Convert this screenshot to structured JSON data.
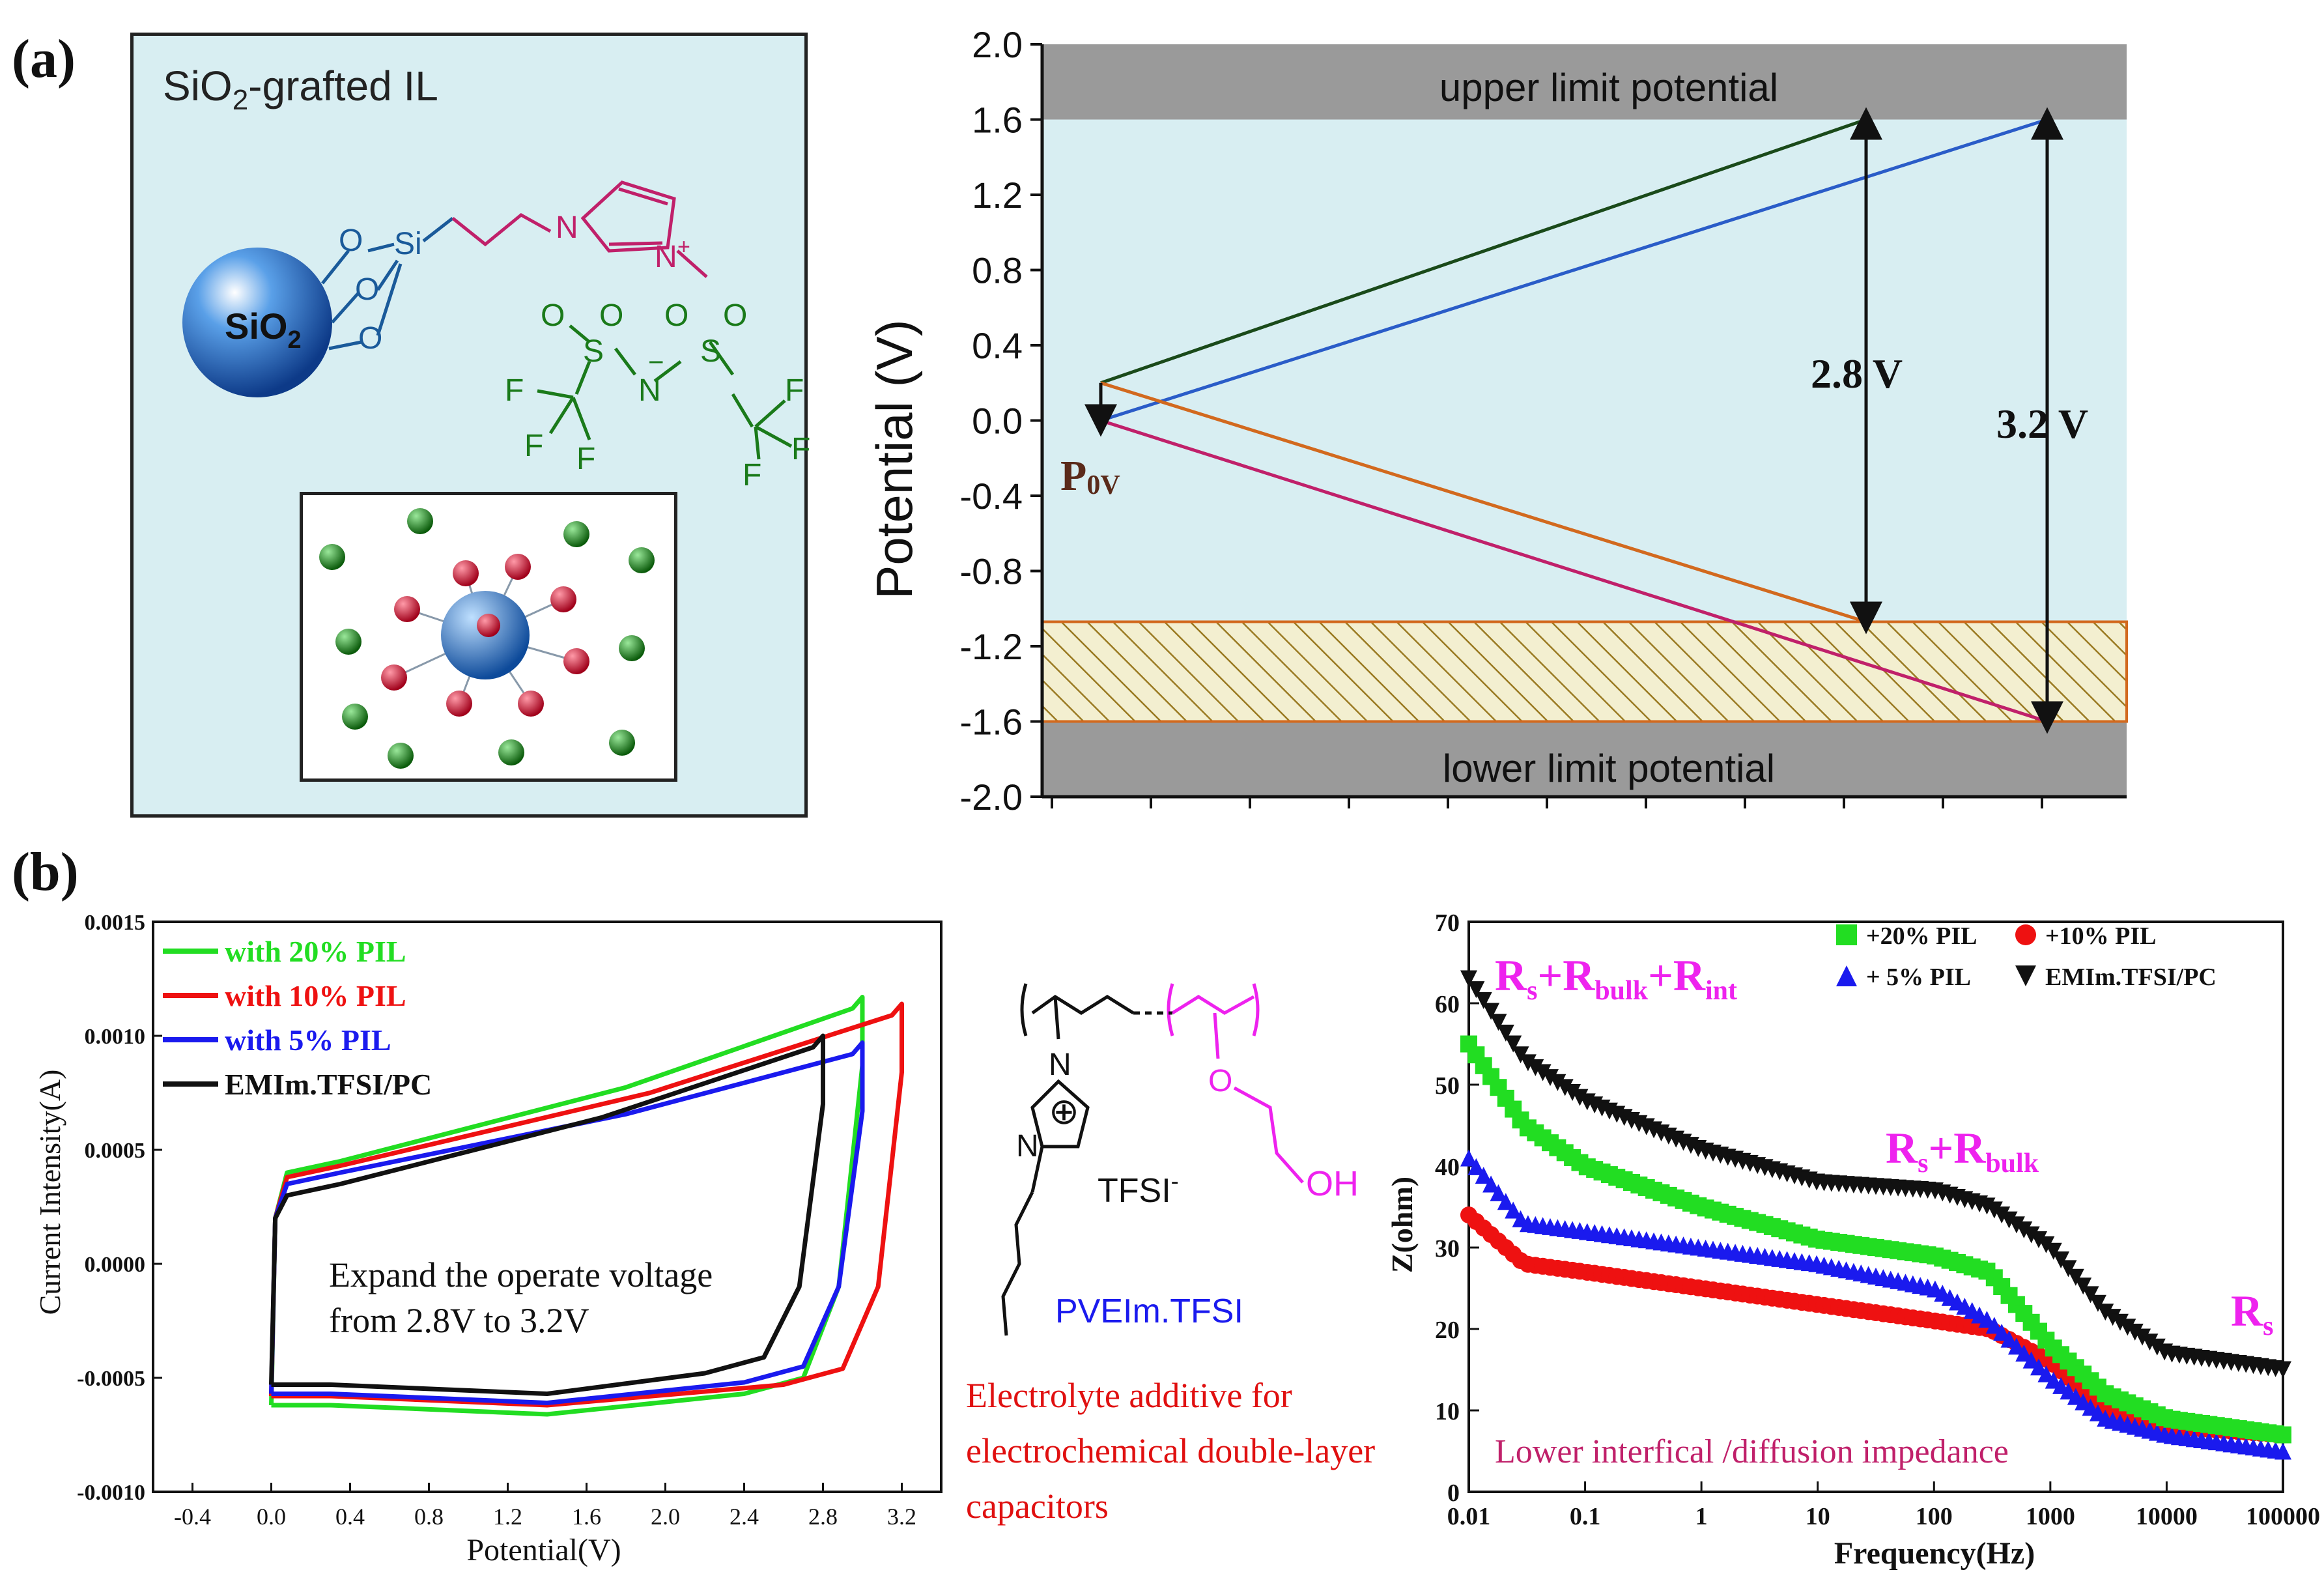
{
  "figure": {
    "panel_a_label": "(a)",
    "panel_b_label": "(b)"
  },
  "schematic": {
    "title_prefix": "SiO",
    "title_sub": "2",
    "title_suffix": "-grafted IL",
    "sphere_label": "SiO",
    "sphere_sub": "2",
    "si_label": "Si",
    "o_label": "O",
    "n_label": "N",
    "s_label": "S",
    "f_label": "F",
    "plus": "+",
    "minus": "−"
  },
  "colors": {
    "panel_bg": "#d8eef2",
    "green_line": "#1a4a1a",
    "blue_line": "#2a5cc8",
    "orange_line": "#d2691e",
    "magenta_line": "#c0206a",
    "bright_green": "#22dd22",
    "red": "#ee1111",
    "blue": "#1a1aee",
    "black": "#111111",
    "magenta": "#ee22ee"
  },
  "chart_data": [
    {
      "type": "line",
      "ylabel": "Potential (V)",
      "ylim": [
        -2.0,
        2.0
      ],
      "yticks": [
        "2.0",
        "1.6",
        "1.2",
        "0.8",
        "0.4",
        "0.0",
        "-0.4",
        "-0.8",
        "-1.2",
        "-1.6",
        "-2.0"
      ],
      "band_upper_label": "upper limit potential",
      "band_lower_label": "lower limit potential",
      "p0_label": "P",
      "p0_sub": "0V",
      "arrow1_label": "2.8 V",
      "arrow2_label": "3.2 V",
      "series": [
        {
          "name": "green",
          "points": [
            [
              0.2,
              0.2
            ],
            [
              3.0,
              1.6
            ]
          ]
        },
        {
          "name": "blue",
          "points": [
            [
              0.2,
              0.0
            ],
            [
              4.0,
              1.6
            ]
          ]
        },
        {
          "name": "orange",
          "points": [
            [
              0.2,
              0.2
            ],
            [
              3.0,
              -1.07
            ]
          ]
        },
        {
          "name": "magenta",
          "points": [
            [
              0.2,
              0.0
            ],
            [
              4.0,
              -1.6
            ]
          ]
        }
      ]
    },
    {
      "type": "line",
      "xlabel": "Potential(V)",
      "ylabel": "Current Intensity(A)",
      "xlim": [
        -0.6,
        3.4
      ],
      "ylim": [
        -0.001,
        0.0015
      ],
      "xticks": [
        "-0.4",
        "0.0",
        "0.4",
        "0.8",
        "1.2",
        "1.6",
        "2.0",
        "2.4",
        "2.8",
        "3.2"
      ],
      "yticks": [
        "0.0015",
        "0.0010",
        "0.0005",
        "0.0000",
        "-0.0005",
        "-0.0010"
      ],
      "annotation_line1": "Expand the operate voltage",
      "annotation_line2": "from 2.8V to 3.2V",
      "series": [
        {
          "name": "with 20% PIL",
          "vmax": 3.0,
          "imax": 0.00117
        },
        {
          "name": "with 10% PIL",
          "vmax": 3.2,
          "imax": 0.00114
        },
        {
          "name": "with 5% PIL",
          "vmax": 3.0,
          "imax": 0.00097
        },
        {
          "name": "EMIm.TFSI/PC",
          "vmax": 2.8,
          "imax": 0.001
        }
      ]
    },
    {
      "type": "scatter",
      "xlabel": "Frequency(Hz)",
      "ylabel": "Z(ohm)",
      "xlim": [
        0.01,
        100000
      ],
      "ylim": [
        0,
        70
      ],
      "xticks": [
        "0.01",
        "0.1",
        "1",
        "10",
        "100",
        "1000",
        "10000",
        "100000"
      ],
      "yticks": [
        "70",
        "60",
        "50",
        "40",
        "30",
        "20",
        "10",
        "0"
      ],
      "series": [
        {
          "name": "+20% PIL",
          "values": [
            [
              0.01,
              55
            ],
            [
              0.03,
              45
            ],
            [
              0.1,
              40
            ],
            [
              1,
              35
            ],
            [
              10,
              31
            ],
            [
              100,
              29
            ],
            [
              300,
              27
            ],
            [
              1000,
              18
            ],
            [
              3000,
              12
            ],
            [
              10000,
              9
            ],
            [
              100000,
              7
            ]
          ]
        },
        {
          "name": "+10% PIL",
          "values": [
            [
              0.01,
              34
            ],
            [
              0.03,
              28
            ],
            [
              0.1,
              27
            ],
            [
              1,
              25
            ],
            [
              10,
              23
            ],
            [
              100,
              21
            ],
            [
              300,
              20
            ],
            [
              1000,
              16
            ],
            [
              3000,
              10
            ],
            [
              10000,
              8
            ],
            [
              100000,
              7
            ]
          ]
        },
        {
          "name": "+ 5% PIL",
          "values": [
            [
              0.01,
              41
            ],
            [
              0.03,
              33
            ],
            [
              0.1,
              32
            ],
            [
              1,
              30
            ],
            [
              10,
              28
            ],
            [
              100,
              25
            ],
            [
              300,
              21
            ],
            [
              1000,
              14
            ],
            [
              3000,
              9
            ],
            [
              10000,
              7
            ],
            [
              100000,
              5
            ]
          ]
        },
        {
          "name": "EMIm.TFSI/PC",
          "values": [
            [
              0.01,
              63
            ],
            [
              0.03,
              53
            ],
            [
              0.1,
              48
            ],
            [
              1,
              42
            ],
            [
              10,
              38
            ],
            [
              100,
              37
            ],
            [
              300,
              35
            ],
            [
              1000,
              30
            ],
            [
              3000,
              22
            ],
            [
              10000,
              17
            ],
            [
              100000,
              15
            ]
          ]
        }
      ],
      "ann_top": {
        "r": "R",
        "s": "s",
        "plus1": "+R",
        "bulk": "bulk",
        "plus2": "+R",
        "int": "int"
      },
      "ann_mid": {
        "r": "R",
        "s": "s",
        "plus": "+R",
        "bulk": "bulk"
      },
      "ann_rs": {
        "r": "R",
        "s": "s"
      },
      "ann_bottom": "Lower interfical /diffusion impedance"
    }
  ],
  "polymer": {
    "n_label": "N",
    "plus_label": "⊕",
    "o_label": "O",
    "oh_label": "OH",
    "tfsi_label": "TFSI",
    "tfsi_sup": "-",
    "name": "PVEIm.TFSI",
    "caption_line1": "Electrolyte additive for",
    "caption_line2": "electrochemical double-layer",
    "caption_line3": "capacitors"
  }
}
